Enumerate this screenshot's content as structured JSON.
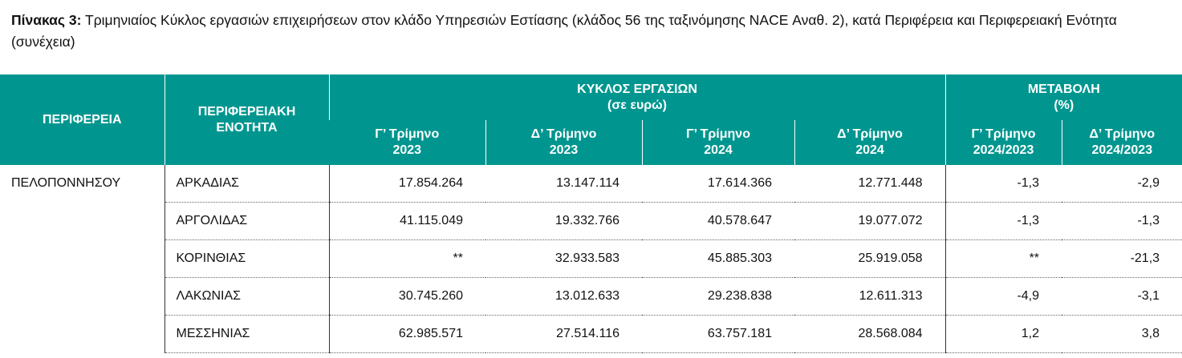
{
  "title": {
    "label": "Πίνακας 3:",
    "text": "Τριμηνιαίος Κύκλος εργασιών επιχειρήσεων στον κλάδο Υπηρεσιών Εστίασης (κλάδος 56 της ταξινόμησης NACE Αναθ. 2), κατά Περιφέρεια και Περιφερειακή Ενότητα (συνέχεια)"
  },
  "table": {
    "header": {
      "region": "ΠΕΡΙΦΕΡΕΙΑ",
      "unit": "ΠΕΡΙΦΕΡΕΙΑΚΗ ΕΝΟΤΗΤΑ",
      "turnover": {
        "title": "ΚΥΚΛΟΣ ΕΡΓΑΣΙΩΝ",
        "unit": "(σε ευρώ)"
      },
      "change": {
        "title": "ΜΕΤΑΒΟΛΗ",
        "unit": "(%)"
      },
      "subcolumns": [
        [
          "Γ’ Τρίμηνο",
          "2023"
        ],
        [
          "Δ’ Τρίμηνο",
          "2023"
        ],
        [
          "Γ’ Τρίμηνο",
          "2024"
        ],
        [
          "Δ’ Τρίμηνο",
          "2024"
        ],
        [
          "Γ’ Τρίμηνο",
          "2024/2023"
        ],
        [
          "Δ’ Τρίμηνο",
          "2024/2023"
        ]
      ]
    },
    "region": "ΠΕΛΟΠΟΝΝΗΣΟΥ",
    "rows": [
      [
        "ΑΡΚΑΔΙΑΣ",
        "17.854.264",
        "13.147.114",
        "17.614.366",
        "12.771.448",
        "-1,3",
        "-2,9"
      ],
      [
        "ΑΡΓΟΛΙΔΑΣ",
        "41.115.049",
        "19.332.766",
        "40.578.647",
        "19.077.072",
        "-1,3",
        "-1,3"
      ],
      [
        "ΚΟΡΙΝΘΙΑΣ",
        "**",
        "32.933.583",
        "45.885.303",
        "25.919.058",
        "**",
        "-21,3"
      ],
      [
        "ΛΑΚΩΝΙΑΣ",
        "30.745.260",
        "13.012.633",
        "29.238.838",
        "12.611.313",
        "-4,9",
        "-3,1"
      ],
      [
        "ΜΕΣΣΗΝΙΑΣ",
        "62.985.571",
        "27.514.116",
        "63.757.181",
        "28.568.084",
        "1,2",
        "3,8"
      ]
    ]
  }
}
